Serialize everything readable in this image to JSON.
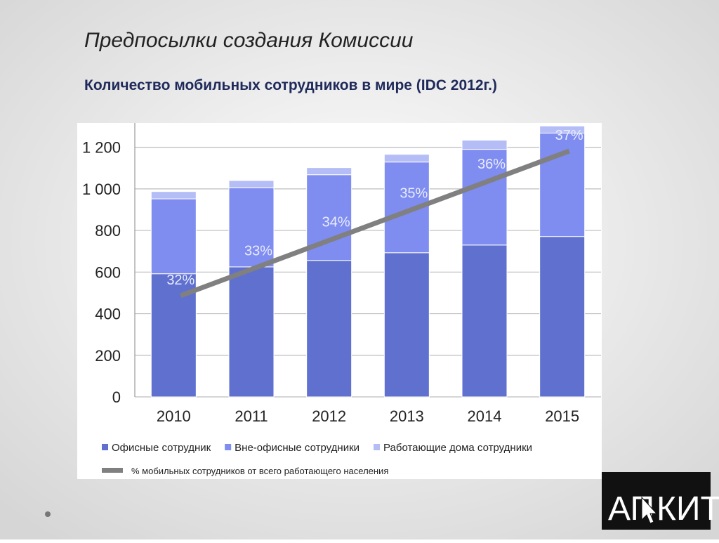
{
  "chart_data": {
    "type": "bar",
    "stacked": true,
    "title": "Предпосылки создания Комиссии",
    "subtitle": "Количество мобильных сотрудников в мире (IDC 2012г.)",
    "categories": [
      "2010",
      "2011",
      "2012",
      "2013",
      "2014",
      "2015"
    ],
    "series": [
      {
        "name": "Офисные сотрудник",
        "color": "#6070cf",
        "values": [
          592,
          625,
          656,
          693,
          730,
          771
        ]
      },
      {
        "name": "Вне-офисные сотрудники",
        "color": "#7f8cf0",
        "values": [
          360,
          380,
          412,
          436,
          460,
          497
        ]
      },
      {
        "name": "Работающие  дома сотрудники",
        "color": "#b4bdf6",
        "values": [
          35,
          35,
          34,
          37,
          44,
          34
        ]
      },
      {
        "name": "% мобильных  сотрудников от всего работающего населения",
        "type": "line",
        "axis": "y2",
        "color": "#808080",
        "values": [
          32,
          33,
          34,
          35,
          36,
          37
        ],
        "value_labels": [
          "32%",
          "33%",
          "34%",
          "35%",
          "36%",
          "37%"
        ]
      }
    ],
    "ylim": [
      0,
      1300
    ],
    "yticks": [
      0,
      200,
      400,
      600,
      800,
      {
        "value": 1000,
        "label": "1 000"
      },
      {
        "value": 1200,
        "label": "1 200"
      }
    ],
    "y2lim": [
      28.5,
      37.85
    ],
    "grid": true,
    "legend": "bottom"
  },
  "logo": {
    "left": "АП",
    "right": "КИТ"
  }
}
